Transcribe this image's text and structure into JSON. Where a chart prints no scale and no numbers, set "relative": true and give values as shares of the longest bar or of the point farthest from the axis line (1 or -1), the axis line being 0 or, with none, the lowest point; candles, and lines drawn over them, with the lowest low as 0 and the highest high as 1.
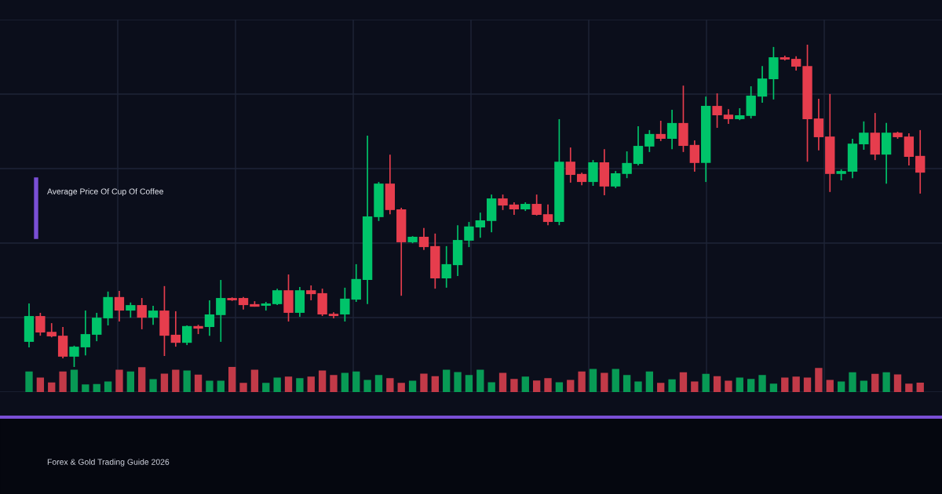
{
  "chart_data": [
    {
      "type": "candlestick",
      "title": "Average Price Of Cup Of Coffee",
      "relative": true,
      "grid": true,
      "colors": [
        "#00c46a",
        "#e63d4d",
        "#e63d4d",
        "#e63d4d",
        "#00c46a",
        "#00c46a",
        "#00c46a",
        "#00c46a",
        "#e63d4d",
        "#00c46a",
        "#e63d4d",
        "#00c46a",
        "#e63d4d",
        "#e63d4d",
        "#00c46a",
        "#e63d4d",
        "#00c46a",
        "#00c46a",
        "#e63d4d",
        "#e63d4d",
        "#e63d4d",
        "#00c46a",
        "#00c46a",
        "#e63d4d",
        "#00c46a",
        "#e63d4d",
        "#e63d4d",
        "#e63d4d",
        "#00c46a",
        "#00c46a",
        "#00c46a",
        "#00c46a",
        "#e63d4d",
        "#e63d4d",
        "#00c46a",
        "#e63d4d",
        "#e63d4d",
        "#00c46a",
        "#00c46a",
        "#00c46a",
        "#00c46a",
        "#00c46a",
        "#e63d4d",
        "#e63d4d",
        "#00c46a",
        "#e63d4d",
        "#e63d4d",
        "#00c46a",
        "#e63d4d",
        "#e63d4d",
        "#00c46a",
        "#e63d4d",
        "#00c46a",
        "#00c46a",
        "#00c46a",
        "#00c46a",
        "#e63d4d",
        "#00c46a",
        "#e63d4d",
        "#e63d4d",
        "#00c46a",
        "#e63d4d",
        "#e63d4d",
        "#00c46a",
        "#00c46a",
        "#00c46a",
        "#00c46a",
        "#e63d4d",
        "#e63d4d",
        "#e63d4d",
        "#e63d4d",
        "#e63d4d",
        "#00c46a",
        "#00c46a",
        "#00c46a",
        "#e63d4d",
        "#00c46a",
        "#e63d4d",
        "#e63d4d",
        "#e63d4d"
      ],
      "annotations": [
        "Forex & Gold Trading Guide 2026"
      ],
      "categories": [
        null,
        null,
        null,
        null,
        null,
        null,
        null,
        null,
        null,
        null,
        null,
        null,
        null,
        null,
        null,
        null,
        null,
        null,
        null,
        null,
        null,
        null,
        null,
        null,
        null,
        null,
        null,
        null,
        null,
        null,
        null,
        null,
        null,
        null,
        null,
        null,
        null,
        null,
        null,
        null,
        null,
        null,
        null,
        null,
        null,
        null,
        null,
        null,
        null,
        null,
        null,
        null,
        null,
        null,
        null,
        null,
        null,
        null,
        null,
        null,
        null,
        null,
        null,
        null,
        null,
        null,
        null,
        null,
        null,
        null,
        null,
        null,
        null,
        null,
        null,
        null,
        null,
        null,
        null,
        null
      ],
      "ohlc": [
        [
          0.078,
          0.197,
          0.061,
          0.158
        ],
        [
          0.158,
          0.168,
          0.097,
          0.107
        ],
        [
          0.109,
          0.136,
          0.092,
          0.095
        ],
        [
          0.097,
          0.124,
          0.027,
          0.032
        ],
        [
          0.032,
          0.066,
          0,
          0.063
        ],
        [
          0.061,
          0.175,
          0.036,
          0.102
        ],
        [
          0.1,
          0.168,
          0.08,
          0.153
        ],
        [
          0.151,
          0.234,
          0.129,
          0.217
        ],
        [
          0.217,
          0.236,
          0.141,
          0.175
        ],
        [
          0.175,
          0.2,
          0.153,
          0.192
        ],
        [
          0.192,
          0.214,
          0.117,
          0.153
        ],
        [
          0.153,
          0.19,
          0.131,
          0.175
        ],
        [
          0.175,
          0.251,
          0.034,
          0.097
        ],
        [
          0.1,
          0.173,
          0.063,
          0.075
        ],
        [
          0.075,
          0.129,
          0.068,
          0.127
        ],
        [
          0.127,
          0.131,
          0.102,
          0.119
        ],
        [
          0.124,
          0.207,
          0.097,
          0.163
        ],
        [
          0.161,
          0.27,
          0.078,
          0.214
        ],
        [
          0.214,
          0.216,
          0.205,
          0.207
        ],
        [
          0.214,
          0.217,
          0.178,
          0.192
        ],
        [
          0.195,
          0.204,
          0.187,
          0.187
        ],
        [
          0.19,
          0.202,
          0.175,
          0.197
        ],
        [
          0.195,
          0.243,
          0.192,
          0.238
        ],
        [
          0.238,
          0.287,
          0.141,
          0.168
        ],
        [
          0.168,
          0.248,
          0.156,
          0.238
        ],
        [
          0.238,
          0.253,
          0.207,
          0.226
        ],
        [
          0.229,
          0.243,
          0.158,
          0.163
        ],
        [
          0.165,
          0.17,
          0.151,
          0.158
        ],
        [
          0.163,
          0.246,
          0.141,
          0.212
        ],
        [
          0.209,
          0.319,
          0.202,
          0.273
        ],
        [
          0.27,
          0.718,
          0.195,
          0.467
        ],
        [
          0.465,
          0.574,
          0.453,
          0.569
        ],
        [
          0.569,
          0.659,
          0.474,
          0.487
        ],
        [
          0.489,
          0.494,
          0.221,
          0.387
        ],
        [
          0.387,
          0.406,
          0.384,
          0.404
        ],
        [
          0.404,
          0.431,
          0.363,
          0.372
        ],
        [
          0.375,
          0.414,
          0.243,
          0.275
        ],
        [
          0.275,
          0.375,
          0.246,
          0.319
        ],
        [
          0.316,
          0.44,
          0.282,
          0.394
        ],
        [
          0.392,
          0.45,
          0.372,
          0.436
        ],
        [
          0.433,
          0.479,
          0.401,
          0.455
        ],
        [
          0.453,
          0.535,
          0.418,
          0.523
        ],
        [
          0.523,
          0.535,
          0.487,
          0.501
        ],
        [
          0.504,
          0.511,
          0.472,
          0.489
        ],
        [
          0.489,
          0.511,
          0.484,
          0.506
        ],
        [
          0.506,
          0.535,
          0.47,
          0.472
        ],
        [
          0.474,
          0.504,
          0.44,
          0.45
        ],
        [
          0.45,
          0.769,
          0.44,
          0.637
        ],
        [
          0.637,
          0.681,
          0.572,
          0.596
        ],
        [
          0.599,
          0.603,
          0.564,
          0.574
        ],
        [
          0.574,
          0.642,
          0.562,
          0.635
        ],
        [
          0.635,
          0.676,
          0.533,
          0.56
        ],
        [
          0.56,
          0.608,
          0.555,
          0.601
        ],
        [
          0.599,
          0.669,
          0.586,
          0.633
        ],
        [
          0.63,
          0.747,
          0.625,
          0.686
        ],
        [
          0.684,
          0.735,
          0.667,
          0.723
        ],
        [
          0.723,
          0.764,
          0.701,
          0.708
        ],
        [
          0.708,
          0.798,
          0.676,
          0.757
        ],
        [
          0.757,
          0.873,
          0.667,
          0.686
        ],
        [
          0.689,
          0.703,
          0.606,
          0.633
        ],
        [
          0.633,
          0.839,
          0.574,
          0.81
        ],
        [
          0.81,
          0.849,
          0.742,
          0.781
        ],
        [
          0.783,
          0.8,
          0.754,
          0.769
        ],
        [
          0.769,
          0.803,
          0.766,
          0.781
        ],
        [
          0.779,
          0.871,
          0.771,
          0.842
        ],
        [
          0.839,
          0.934,
          0.82,
          0.895
        ],
        [
          0.893,
          0.993,
          0.83,
          0.961
        ],
        [
          0.961,
          0.966,
          0.951,
          0.954
        ],
        [
          0.956,
          0.964,
          0.92,
          0.932
        ],
        [
          0.934,
          1,
          0.637,
          0.769
        ],
        [
          0.771,
          0.832,
          0.672,
          0.713
        ],
        [
          0.715,
          0.847,
          0.543,
          0.599
        ],
        [
          0.599,
          0.613,
          0.579,
          0.608
        ],
        [
          0.606,
          0.708,
          0.586,
          0.693
        ],
        [
          0.691,
          0.762,
          0.674,
          0.727
        ],
        [
          0.727,
          0.788,
          0.642,
          0.659
        ],
        [
          0.659,
          0.757,
          0.569,
          0.727
        ],
        [
          0.727,
          0.73,
          0.708,
          0.713
        ],
        [
          0.715,
          0.725,
          0.625,
          0.652
        ],
        [
          0.655,
          0.735,
          0.538,
          0.603
        ]
      ]
    },
    {
      "type": "bar",
      "relative": true,
      "categories": [
        null,
        null,
        null,
        null,
        null,
        null,
        null,
        null,
        null,
        null,
        null,
        null,
        null,
        null,
        null,
        null,
        null,
        null,
        null,
        null,
        null,
        null,
        null,
        null,
        null,
        null,
        null,
        null,
        null,
        null,
        null,
        null,
        null,
        null,
        null,
        null,
        null,
        null,
        null,
        null,
        null,
        null,
        null,
        null,
        null,
        null,
        null,
        null,
        null,
        null,
        null,
        null,
        null,
        null,
        null,
        null,
        null,
        null,
        null,
        null,
        null,
        null,
        null,
        null,
        null,
        null,
        null,
        null,
        null,
        null,
        null,
        null,
        null,
        null,
        null,
        null,
        null,
        null,
        null,
        null
      ],
      "values": [
        0.81,
        0.57,
        0.38,
        0.81,
        0.88,
        0.3,
        0.32,
        0.42,
        0.88,
        0.81,
        0.98,
        0.51,
        0.73,
        0.88,
        0.85,
        0.69,
        0.45,
        0.45,
        1,
        0.36,
        0.88,
        0.36,
        0.57,
        0.61,
        0.55,
        0.61,
        0.85,
        0.67,
        0.76,
        0.81,
        0.48,
        0.67,
        0.55,
        0.36,
        0.45,
        0.73,
        0.63,
        0.88,
        0.79,
        0.67,
        0.88,
        0.39,
        0.76,
        0.52,
        0.61,
        0.46,
        0.55,
        0.39,
        0.48,
        0.81,
        0.91,
        0.76,
        0.91,
        0.67,
        0.42,
        0.81,
        0.36,
        0.5,
        0.78,
        0.42,
        0.72,
        0.63,
        0.45,
        0.57,
        0.52,
        0.67,
        0.33,
        0.57,
        0.61,
        0.57,
        0.95,
        0.48,
        0.42,
        0.78,
        0.45,
        0.72,
        0.78,
        0.7,
        0.33,
        0.37
      ],
      "colors": [
        "#089a55",
        "#c23a48",
        "#c23a48",
        "#c23a48",
        "#089a55",
        "#089a55",
        "#089a55",
        "#089a55",
        "#c23a48",
        "#089a55",
        "#c23a48",
        "#089a55",
        "#c23a48",
        "#c23a48",
        "#089a55",
        "#c23a48",
        "#089a55",
        "#089a55",
        "#c23a48",
        "#c23a48",
        "#c23a48",
        "#089a55",
        "#089a55",
        "#c23a48",
        "#089a55",
        "#c23a48",
        "#c23a48",
        "#c23a48",
        "#089a55",
        "#089a55",
        "#089a55",
        "#089a55",
        "#c23a48",
        "#c23a48",
        "#089a55",
        "#c23a48",
        "#c23a48",
        "#089a55",
        "#089a55",
        "#089a55",
        "#089a55",
        "#089a55",
        "#c23a48",
        "#c23a48",
        "#089a55",
        "#c23a48",
        "#c23a48",
        "#089a55",
        "#c23a48",
        "#c23a48",
        "#089a55",
        "#c23a48",
        "#089a55",
        "#089a55",
        "#089a55",
        "#089a55",
        "#c23a48",
        "#089a55",
        "#c23a48",
        "#c23a48",
        "#089a55",
        "#c23a48",
        "#c23a48",
        "#089a55",
        "#089a55",
        "#089a55",
        "#089a55",
        "#c23a48",
        "#c23a48",
        "#c23a48",
        "#c23a48",
        "#c23a48",
        "#089a55",
        "#089a55",
        "#089a55",
        "#c23a48",
        "#089a55",
        "#c23a48",
        "#c23a48",
        "#c23a48"
      ]
    }
  ]
}
